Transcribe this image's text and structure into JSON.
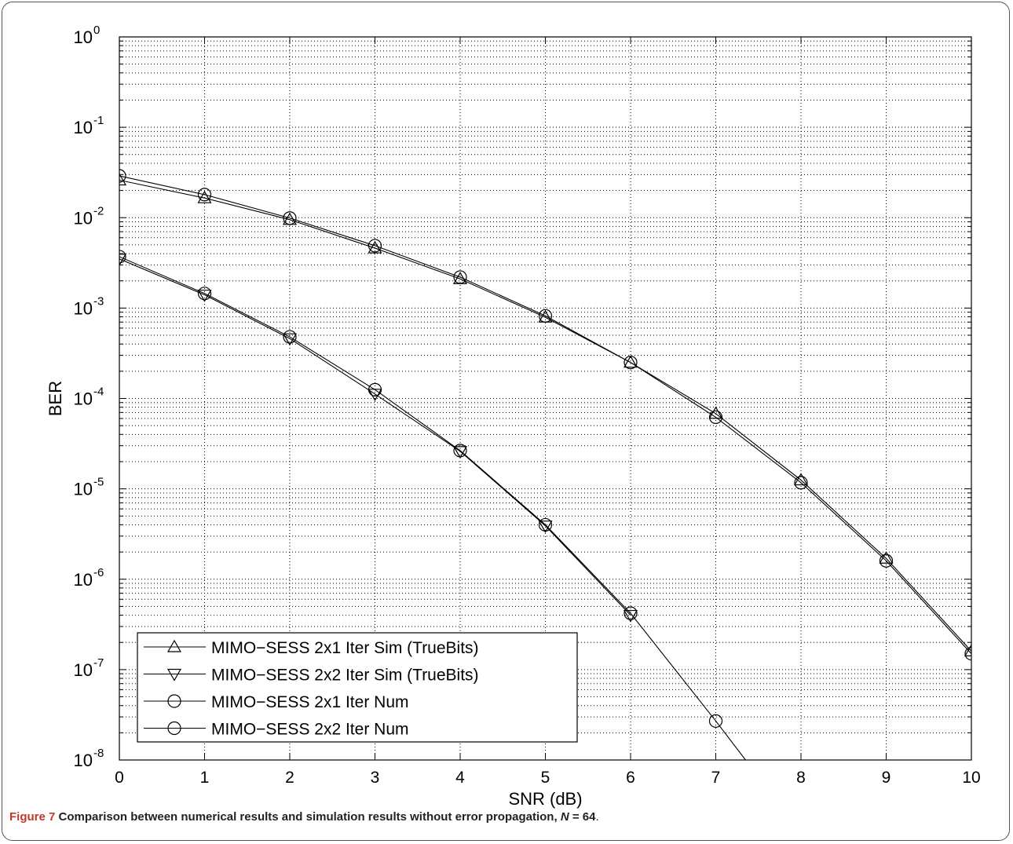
{
  "chart_data": {
    "type": "line",
    "xlabel": "SNR (dB)",
    "ylabel": "BER",
    "xlim": [
      0,
      10
    ],
    "ylim": [
      1e-08,
      1
    ],
    "yscale": "log",
    "grid": true,
    "legend_position": "bottom-left",
    "x_ticks": [
      "0",
      "1",
      "2",
      "3",
      "4",
      "5",
      "6",
      "7",
      "8",
      "9",
      "10"
    ],
    "y_ticks": [
      {
        "value": 1,
        "base": "10",
        "exp": "0"
      },
      {
        "value": 0.1,
        "base": "10",
        "exp": "-1"
      },
      {
        "value": 0.01,
        "base": "10",
        "exp": "-2"
      },
      {
        "value": 0.001,
        "base": "10",
        "exp": "-3"
      },
      {
        "value": 0.0001,
        "base": "10",
        "exp": "-4"
      },
      {
        "value": 1e-05,
        "base": "10",
        "exp": "-5"
      },
      {
        "value": 1e-06,
        "base": "10",
        "exp": "-6"
      },
      {
        "value": 1e-07,
        "base": "10",
        "exp": "-7"
      },
      {
        "value": 1e-08,
        "base": "10",
        "exp": "-8"
      }
    ],
    "series": [
      {
        "name": "MIMO−SESS 2x1 Iter Sim (TrueBits)",
        "marker": "triangle-up",
        "x": [
          0,
          1,
          2,
          3,
          4,
          5,
          6,
          7,
          8,
          9,
          10
        ],
        "y": [
          0.026,
          0.0165,
          0.0095,
          0.0046,
          0.0021,
          0.00079,
          0.00025,
          6.8e-05,
          1.25e-05,
          1.7e-06,
          1.6e-07
        ]
      },
      {
        "name": "MIMO−SESS 2x2 Iter Sim (TrueBits)",
        "marker": "triangle-down",
        "x": [
          0,
          1,
          2,
          3,
          4,
          5,
          6
        ],
        "y": [
          0.0035,
          0.0014,
          0.00046,
          0.000112,
          2.6e-05,
          3.9e-06,
          4e-07
        ]
      },
      {
        "name": "MIMO−SESS 2x1 Iter Num",
        "marker": "circle",
        "x": [
          0,
          1,
          2,
          3,
          4,
          5,
          6,
          7,
          8,
          9,
          10
        ],
        "y": [
          0.029,
          0.018,
          0.0099,
          0.0049,
          0.0022,
          0.00082,
          0.00025,
          6.2e-05,
          1.17e-05,
          1.6e-06,
          1.5e-07
        ]
      },
      {
        "name": "MIMO−SESS 2x2 Iter Num",
        "marker": "circle",
        "x": [
          0,
          1,
          2,
          3,
          4,
          5,
          6,
          7,
          7.35
        ],
        "y": [
          0.0037,
          0.00145,
          0.00048,
          0.000125,
          2.65e-05,
          4e-06,
          4.2e-07,
          2.7e-08,
          1e-08
        ]
      }
    ]
  },
  "caption": {
    "label": "Figure 7",
    "text": " Comparison between numerical results and simulation results without error propagation, ",
    "n_symbol": "N",
    "n_value": " = 64",
    "tail": "."
  }
}
